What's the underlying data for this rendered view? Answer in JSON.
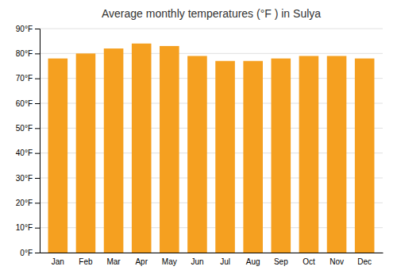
{
  "chart_data": {
    "type": "bar",
    "title": "Average monthly temperatures (°F ) in Sulya",
    "categories": [
      "Jan",
      "Feb",
      "Mar",
      "Apr",
      "May",
      "Jun",
      "Jul",
      "Aug",
      "Sep",
      "Oct",
      "Nov",
      "Dec"
    ],
    "values": [
      78,
      80,
      82,
      84,
      83,
      79,
      77,
      77,
      78,
      79,
      79,
      78
    ],
    "color": "#F5A020",
    "ylim": [
      0,
      90
    ],
    "yticks": [
      {
        "value": 0,
        "label": "0°F"
      },
      {
        "value": 10,
        "label": "10°F"
      },
      {
        "value": 20,
        "label": "20°F"
      },
      {
        "value": 30,
        "label": "30°F"
      },
      {
        "value": 40,
        "label": "40°F"
      },
      {
        "value": 50,
        "label": "50°F"
      },
      {
        "value": 60,
        "label": "60°F"
      },
      {
        "value": 70,
        "label": "70°F"
      },
      {
        "value": 80,
        "label": "80°F"
      },
      {
        "value": 90,
        "label": "90°F"
      }
    ],
    "grid": true
  }
}
